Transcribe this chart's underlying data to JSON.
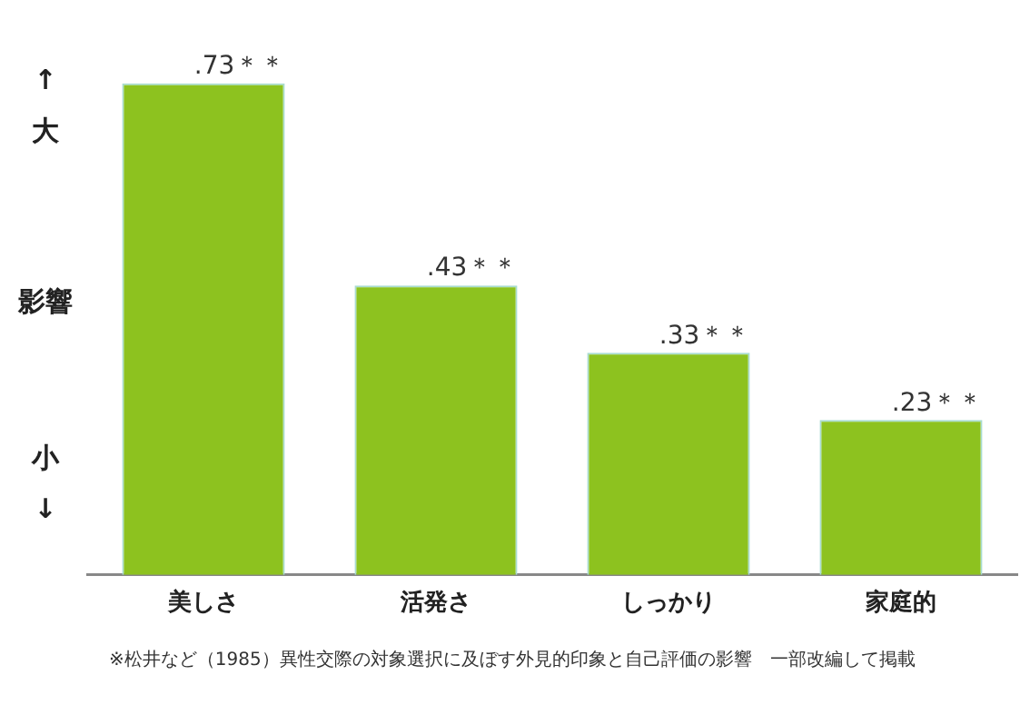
{
  "chart_data": {
    "type": "bar",
    "ylabel": "影響",
    "categories": [
      "美しさ",
      "活発さ",
      "しっかり",
      "家庭的"
    ],
    "values": [
      0.73,
      0.43,
      0.33,
      0.23
    ],
    "value_labels": [
      ".73＊＊",
      ".43＊＊",
      ".33＊＊",
      ".23＊＊"
    ],
    "color": "#8dc21f",
    "tick_labels": "x",
    "grid": false,
    "legend": false,
    "annotations": [
      "↑\n大",
      "小\n↓",
      "※松井など（1985）異性交際の対象選択に及ぼす外見的印象と自己評価の影響　一部改編して掲載"
    ]
  }
}
